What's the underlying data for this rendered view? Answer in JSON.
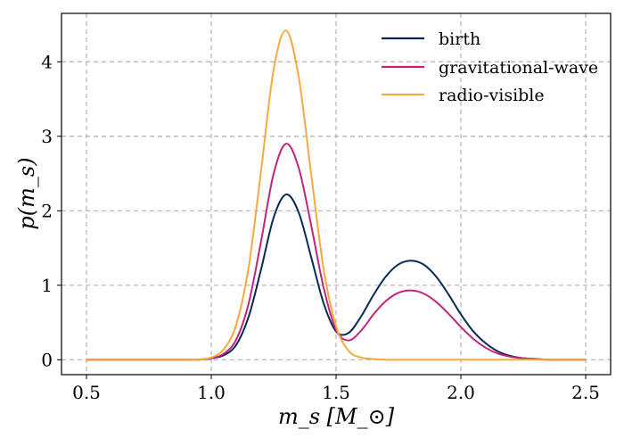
{
  "chart_data": {
    "type": "line",
    "title": "",
    "xlabel": "m_s [M_⊙]",
    "ylabel": "p(m_s)",
    "xlim": [
      0.4,
      2.6
    ],
    "ylim": [
      -0.2,
      4.65
    ],
    "grid": true,
    "legend_position": "top-right",
    "x_ticks": [
      0.5,
      1.0,
      1.5,
      2.0,
      2.5
    ],
    "x_tick_labels": [
      "0.5",
      "1.0",
      "1.5",
      "2.0",
      "2.5"
    ],
    "y_ticks": [
      0,
      1,
      2,
      3,
      4
    ],
    "y_tick_labels": [
      "0",
      "1",
      "2",
      "3",
      "4"
    ],
    "x": [
      0.5,
      0.55,
      0.6,
      0.65,
      0.7,
      0.75,
      0.8,
      0.85,
      0.9,
      0.95,
      1.0,
      1.05,
      1.1,
      1.15,
      1.2,
      1.25,
      1.3,
      1.35,
      1.4,
      1.45,
      1.5,
      1.55,
      1.6,
      1.65,
      1.7,
      1.75,
      1.8,
      1.85,
      1.9,
      1.95,
      2.0,
      2.05,
      2.1,
      2.15,
      2.2,
      2.25,
      2.3,
      2.35,
      2.4,
      2.45,
      2.5
    ],
    "series": [
      {
        "name": "birth",
        "color": "#0a2a55",
        "values": [
          0,
          0,
          0,
          0,
          0,
          0,
          0,
          0,
          0,
          0,
          0.02,
          0.06,
          0.2,
          0.58,
          1.22,
          1.91,
          2.22,
          1.98,
          1.38,
          0.76,
          0.38,
          0.36,
          0.58,
          0.87,
          1.12,
          1.28,
          1.33,
          1.28,
          1.12,
          0.88,
          0.61,
          0.38,
          0.22,
          0.11,
          0.05,
          0.02,
          0.01,
          0,
          0,
          0,
          0
        ]
      },
      {
        "name": "gravitational-wave",
        "color": "#c2247a",
        "values": [
          0,
          0,
          0,
          0,
          0,
          0,
          0,
          0,
          0,
          0,
          0.02,
          0.08,
          0.27,
          0.76,
          1.6,
          2.5,
          2.9,
          2.58,
          1.81,
          0.97,
          0.4,
          0.26,
          0.39,
          0.61,
          0.79,
          0.9,
          0.93,
          0.89,
          0.78,
          0.62,
          0.44,
          0.28,
          0.16,
          0.08,
          0.04,
          0.02,
          0.01,
          0,
          0,
          0,
          0
        ]
      },
      {
        "name": "radio-visible",
        "color": "#f7a940",
        "values": [
          0,
          0,
          0,
          0,
          0,
          0,
          0,
          0,
          0,
          0,
          0.03,
          0.14,
          0.47,
          1.25,
          2.55,
          3.9,
          4.42,
          3.8,
          2.5,
          1.22,
          0.45,
          0.12,
          0.03,
          0.01,
          0,
          0,
          0,
          0,
          0,
          0,
          0,
          0,
          0,
          0,
          0,
          0,
          0,
          0,
          0,
          0,
          0
        ]
      }
    ]
  }
}
